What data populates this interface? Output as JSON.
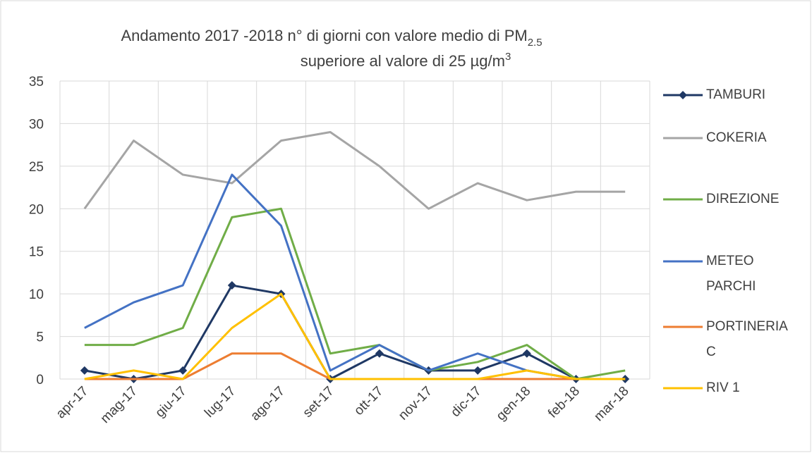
{
  "chart_data": {
    "type": "line",
    "title": "Andamento 2017 -2018 n° di giorni con valore medio di PM",
    "title_subscript": "2.5",
    "subtitle": "superiore al valore di 25 µg/m",
    "subtitle_superscript": "3",
    "categories": [
      "apr-17",
      "mag-17",
      "giu-17",
      "lug-17",
      "ago-17",
      "set-17",
      "ott-17",
      "nov-17",
      "dic-17",
      "gen-18",
      "feb-18",
      "mar-18"
    ],
    "series": [
      {
        "name": "TAMBURI",
        "color": "#1f3864",
        "marker": "diamond",
        "values": [
          1,
          0,
          1,
          11,
          10,
          0,
          3,
          1,
          1,
          3,
          0,
          0
        ]
      },
      {
        "name": "COKERIA",
        "color": "#a5a5a5",
        "values": [
          20,
          28,
          24,
          23,
          28,
          29,
          25,
          20,
          23,
          21,
          22,
          22
        ]
      },
      {
        "name": "DIREZIONE",
        "color": "#70ad47",
        "values": [
          4,
          4,
          6,
          19,
          20,
          3,
          4,
          1,
          2,
          4,
          0,
          1
        ]
      },
      {
        "name": "METEO PARCHI",
        "color": "#4472c4",
        "values": [
          6,
          9,
          11,
          24,
          18,
          1,
          4,
          1,
          3,
          1,
          0,
          0
        ]
      },
      {
        "name": "PORTINERIA C",
        "color": "#ed7d31",
        "values": [
          0,
          0,
          0,
          3,
          3,
          0,
          0,
          0,
          0,
          0,
          0,
          0
        ]
      },
      {
        "name": "RIV 1",
        "color": "#ffc000",
        "values": [
          0,
          1,
          0,
          6,
          10,
          0,
          0,
          0,
          0,
          1,
          0,
          0
        ]
      }
    ],
    "ylim": [
      0,
      35
    ],
    "yticks": [
      0,
      5,
      10,
      15,
      20,
      25,
      30,
      35
    ],
    "grid": true
  }
}
